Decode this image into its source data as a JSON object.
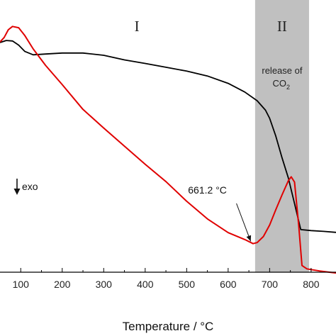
{
  "chart_data": {
    "type": "line",
    "title": "",
    "xlabel": "Temperature / °C",
    "ylabel": "",
    "xlim": [
      50,
      860
    ],
    "ylim": [
      0,
      100
    ],
    "x_ticks": [
      100,
      200,
      300,
      400,
      500,
      600,
      700,
      800
    ],
    "grid": false,
    "shaded_region": {
      "x_start": 665,
      "x_end": 795,
      "color": "#c0c0c0"
    },
    "region_labels": [
      "I",
      "II"
    ],
    "release_annotation": {
      "line1": "release of",
      "line2_main": "CO",
      "line2_sub": "2"
    },
    "exo_label": "exo",
    "peak_annotation": {
      "text": "661.2 °C",
      "x": 661.2,
      "y": 11
    },
    "series": [
      {
        "color": "#000000",
        "values": [
          [
            50,
            90
          ],
          [
            65,
            90.8
          ],
          [
            80,
            90.6
          ],
          [
            95,
            89
          ],
          [
            110,
            86.5
          ],
          [
            130,
            85.2
          ],
          [
            160,
            85.5
          ],
          [
            200,
            85.9
          ],
          [
            250,
            85.9
          ],
          [
            300,
            85
          ],
          [
            350,
            83.2
          ],
          [
            400,
            81.8
          ],
          [
            450,
            80.3
          ],
          [
            500,
            78.8
          ],
          [
            550,
            76.9
          ],
          [
            600,
            74
          ],
          [
            640,
            70.6
          ],
          [
            670,
            67.2
          ],
          [
            690,
            63.5
          ],
          [
            700,
            60.3
          ],
          [
            715,
            53.3
          ],
          [
            730,
            44.8
          ],
          [
            745,
            37
          ],
          [
            760,
            26.9
          ],
          [
            775,
            16.7
          ],
          [
            800,
            16.3
          ],
          [
            830,
            16
          ],
          [
            860,
            15.6
          ]
        ]
      },
      {
        "color": "#e00000",
        "values": [
          [
            50,
            90.2
          ],
          [
            60,
            92
          ],
          [
            70,
            95
          ],
          [
            80,
            96.3
          ],
          [
            95,
            95.8
          ],
          [
            110,
            92.7
          ],
          [
            130,
            87.5
          ],
          [
            160,
            81
          ],
          [
            200,
            73.5
          ],
          [
            250,
            63.8
          ],
          [
            300,
            56.5
          ],
          [
            350,
            49.4
          ],
          [
            400,
            42.3
          ],
          [
            450,
            35.5
          ],
          [
            500,
            27.8
          ],
          [
            550,
            20.9
          ],
          [
            600,
            15.5
          ],
          [
            640,
            12.8
          ],
          [
            660,
            11.2
          ],
          [
            670,
            11.6
          ],
          [
            685,
            14
          ],
          [
            700,
            18.5
          ],
          [
            715,
            24.5
          ],
          [
            730,
            30.3
          ],
          [
            745,
            35.8
          ],
          [
            752,
            37.4
          ],
          [
            760,
            35.3
          ],
          [
            770,
            18.6
          ],
          [
            778,
            2.6
          ],
          [
            790,
            1.3
          ],
          [
            820,
            0.5
          ],
          [
            860,
            -0.3
          ]
        ]
      }
    ]
  }
}
